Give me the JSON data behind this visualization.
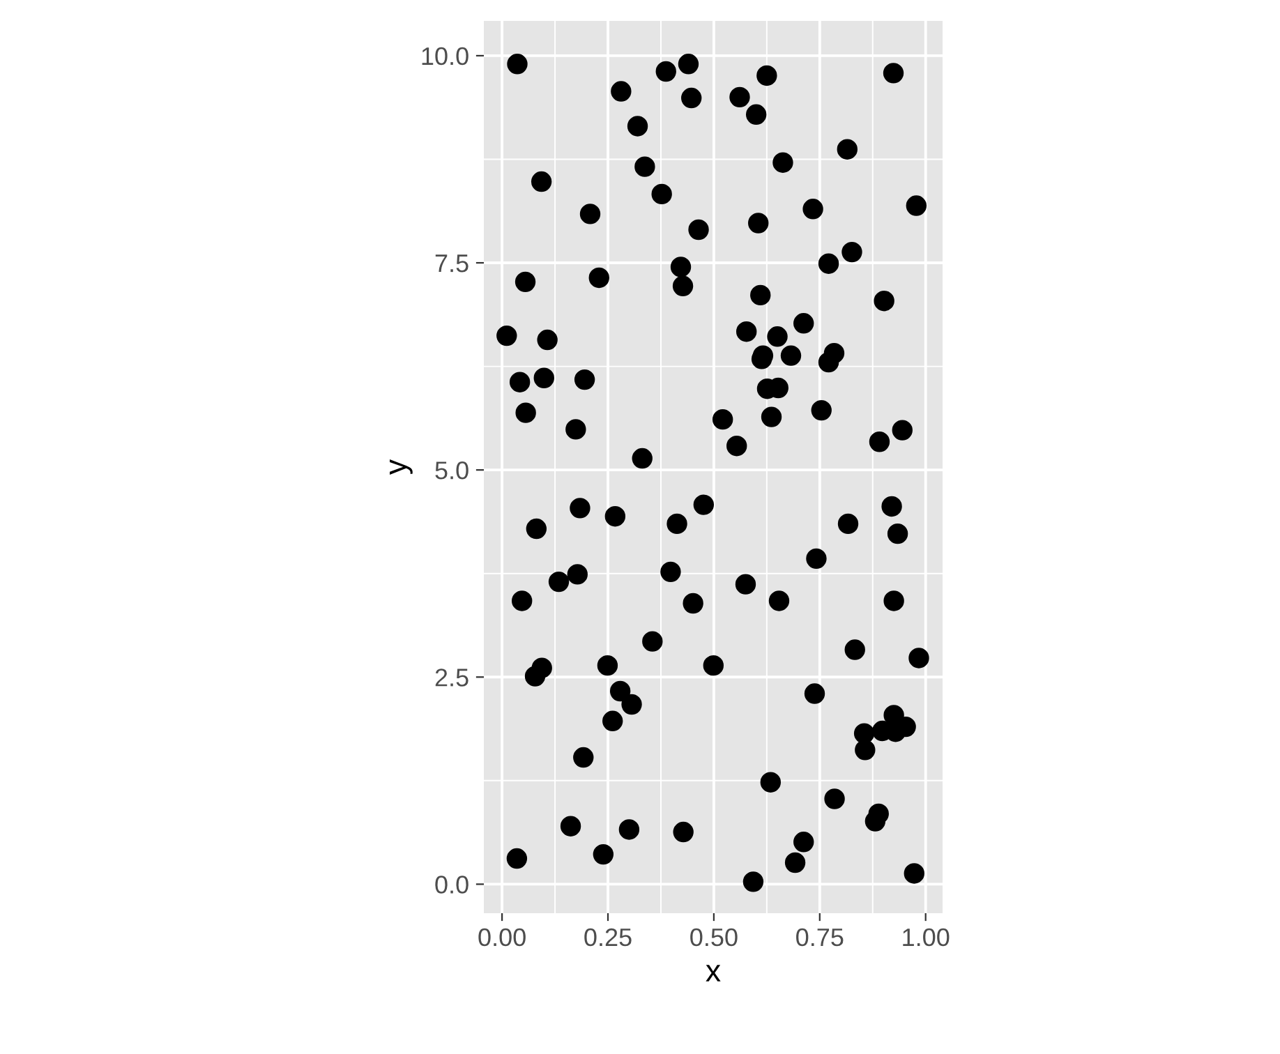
{
  "chart_data": {
    "type": "scatter",
    "xlabel": "x",
    "ylabel": "y",
    "x": [
      0.036,
      0.387,
      0.44,
      0.281,
      0.447,
      0.32,
      0.337,
      0.093,
      0.377,
      0.208,
      0.464,
      0.422,
      0.427,
      0.055,
      0.229,
      0.625,
      0.924,
      0.561,
      0.6,
      0.815,
      0.663,
      0.605,
      0.734,
      0.978,
      0.826,
      0.771,
      0.61,
      0.902,
      0.011,
      0.107,
      0.042,
      0.099,
      0.195,
      0.056,
      0.174,
      0.331,
      0.184,
      0.267,
      0.476,
      0.413,
      0.081,
      0.178,
      0.134,
      0.398,
      0.047,
      0.451,
      0.577,
      0.65,
      0.712,
      0.616,
      0.613,
      0.682,
      0.784,
      0.771,
      0.626,
      0.652,
      0.521,
      0.636,
      0.754,
      0.554,
      0.891,
      0.945,
      0.92,
      0.817,
      0.934,
      0.742,
      0.575,
      0.654,
      0.925,
      0.355,
      0.094,
      0.078,
      0.249,
      0.499,
      0.279,
      0.306,
      0.261,
      0.192,
      0.162,
      0.3,
      0.428,
      0.239,
      0.035,
      0.833,
      0.984,
      0.738,
      0.925,
      0.855,
      0.898,
      0.929,
      0.953,
      0.857,
      0.634,
      0.785,
      0.889,
      0.881,
      0.712,
      0.692,
      0.593,
      0.973
    ],
    "values": [
      9.9,
      9.81,
      9.9,
      9.57,
      9.49,
      9.15,
      8.66,
      8.48,
      8.33,
      8.09,
      7.9,
      7.45,
      7.22,
      7.27,
      7.32,
      9.76,
      9.79,
      9.5,
      9.29,
      8.87,
      8.71,
      7.98,
      8.15,
      8.19,
      7.63,
      7.49,
      7.11,
      7.04,
      6.62,
      6.57,
      6.06,
      6.11,
      6.09,
      5.69,
      5.49,
      5.14,
      4.54,
      4.44,
      4.58,
      4.35,
      4.29,
      3.74,
      3.65,
      3.77,
      3.42,
      3.39,
      6.67,
      6.61,
      6.77,
      6.38,
      6.34,
      6.38,
      6.41,
      6.3,
      5.98,
      5.99,
      5.61,
      5.64,
      5.72,
      5.29,
      5.34,
      5.48,
      4.56,
      4.35,
      4.23,
      3.93,
      3.62,
      3.42,
      3.42,
      2.93,
      2.61,
      2.51,
      2.64,
      2.64,
      2.33,
      2.17,
      1.97,
      1.53,
      0.7,
      0.66,
      0.63,
      0.36,
      0.31,
      2.83,
      2.73,
      2.3,
      2.04,
      1.82,
      1.85,
      1.84,
      1.9,
      1.62,
      1.23,
      1.03,
      0.85,
      0.76,
      0.51,
      0.26,
      0.03,
      0.13
    ],
    "color": "#000000",
    "marker": "circle",
    "xlim": [
      -0.043,
      1.04
    ],
    "ylim": [
      -0.35,
      10.42
    ],
    "xticks": [
      {
        "value": 0,
        "label": "0.00"
      },
      {
        "value": 0.25,
        "label": "0.25"
      },
      {
        "value": 0.5,
        "label": "0.50"
      },
      {
        "value": 0.75,
        "label": "0.75"
      },
      {
        "value": 1,
        "label": "1.00"
      }
    ],
    "yticks": [
      {
        "value": 0,
        "label": "0.0"
      },
      {
        "value": 2.5,
        "label": "2.5"
      },
      {
        "value": 5,
        "label": "5.0"
      },
      {
        "value": 7.5,
        "label": "7.5"
      },
      {
        "value": 10,
        "label": "10.0"
      }
    ],
    "grid": true
  }
}
